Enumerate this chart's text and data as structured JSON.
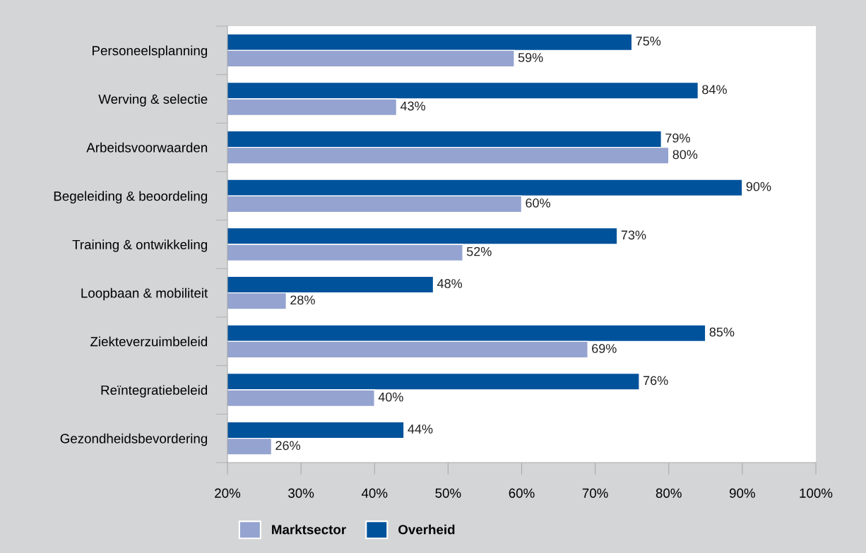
{
  "chart_data": {
    "type": "bar",
    "orientation": "horizontal",
    "categories": [
      "Personeelsplanning",
      "Werving & selectie",
      "Arbeidsvoorwaarden",
      "Begeleiding & beoordeling",
      "Training & ontwikkeling",
      "Loopbaan & mobiliteit",
      "Ziekteverzuimbeleid",
      "Reïntegratiebeleid",
      "Gezondheidsbevordering"
    ],
    "series": [
      {
        "name": "Overheid",
        "color": "#00529b",
        "values": [
          75,
          84,
          79,
          90,
          73,
          48,
          85,
          76,
          44
        ],
        "value_labels": [
          "75%",
          "84%",
          "79%",
          "90%",
          "73%",
          "48%",
          "85%",
          "76%",
          "44%"
        ]
      },
      {
        "name": "Marktsector",
        "color": "#94a3cf",
        "values": [
          59,
          43,
          80,
          60,
          52,
          28,
          69,
          40,
          26
        ],
        "value_labels": [
          "59%",
          "43%",
          "80%",
          "60%",
          "52%",
          "28%",
          "69%",
          "40%",
          "26%"
        ]
      }
    ],
    "xlim": [
      20,
      100
    ],
    "xticks": [
      {
        "value": 20,
        "label": "20%"
      },
      {
        "value": 30,
        "label": "30%"
      },
      {
        "value": 40,
        "label": "40%"
      },
      {
        "value": 50,
        "label": "50%"
      },
      {
        "value": 60,
        "label": "60%"
      },
      {
        "value": 70,
        "label": "70%"
      },
      {
        "value": 80,
        "label": "80%"
      },
      {
        "value": 90,
        "label": "90%"
      },
      {
        "value": 100,
        "label": "100%"
      }
    ],
    "grid": false,
    "legend": "bottom left"
  }
}
